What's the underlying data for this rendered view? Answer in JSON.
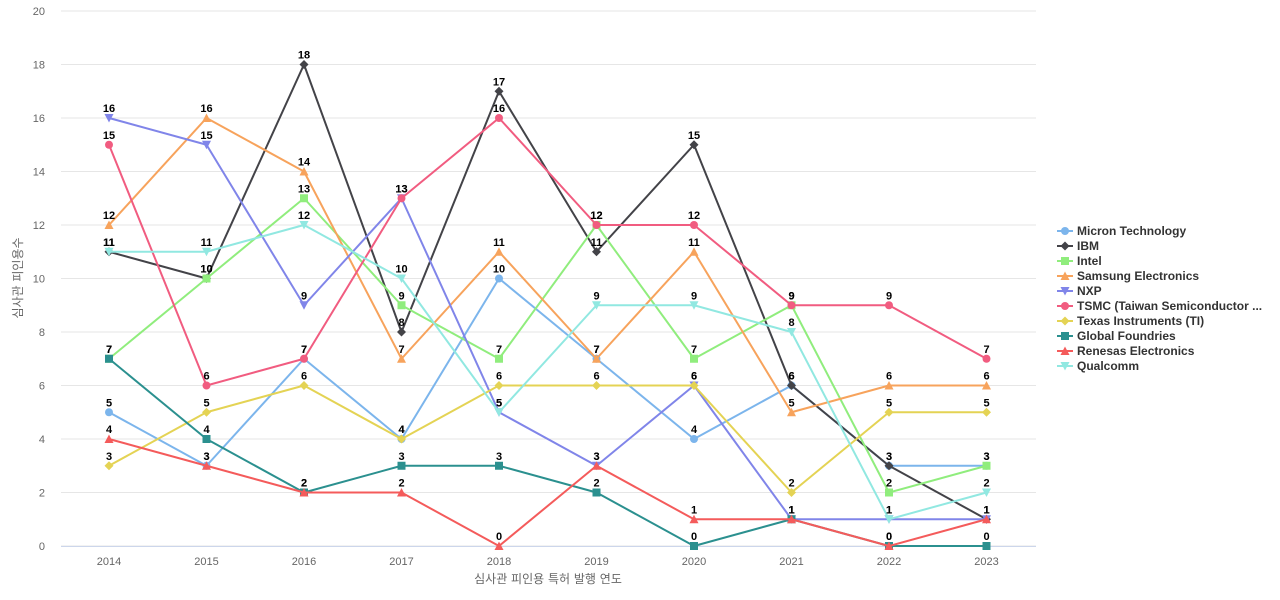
{
  "chart_data": {
    "type": "line",
    "xlabel": "심사관 피인용 특허 발행 연도",
    "ylabel": "심사관 피인용수",
    "ylim": [
      0,
      20
    ],
    "yticks": [
      0,
      2,
      4,
      6,
      8,
      10,
      12,
      14,
      16,
      18,
      20
    ],
    "x": [
      "2014",
      "2015",
      "2016",
      "2017",
      "2018",
      "2019",
      "2020",
      "2021",
      "2022",
      "2023"
    ],
    "grid": true,
    "legend_position": "right",
    "series": [
      {
        "name": "Micron Technology",
        "color": "#7cb5ec",
        "marker": "circle",
        "values": [
          5,
          3,
          7,
          4,
          10,
          7,
          4,
          6,
          3,
          3
        ]
      },
      {
        "name": "IBM",
        "color": "#434348",
        "marker": "diamond",
        "values": [
          11,
          10,
          18,
          8,
          17,
          11,
          15,
          6,
          3,
          1
        ]
      },
      {
        "name": "Intel",
        "color": "#90ed7d",
        "marker": "square",
        "values": [
          7,
          10,
          13,
          9,
          7,
          12,
          7,
          9,
          2,
          3
        ]
      },
      {
        "name": "Samsung Electronics",
        "color": "#f7a35c",
        "marker": "triangle",
        "values": [
          12,
          16,
          14,
          7,
          11,
          7,
          11,
          5,
          6,
          6
        ]
      },
      {
        "name": "NXP",
        "color": "#8085e9",
        "marker": "triangle-down",
        "values": [
          16,
          15,
          9,
          13,
          5,
          3,
          6,
          1,
          1,
          1
        ]
      },
      {
        "name": "TSMC (Taiwan Semiconductor ...",
        "color": "#f15c80",
        "marker": "circle",
        "values": [
          15,
          6,
          7,
          13,
          16,
          12,
          12,
          9,
          9,
          7
        ]
      },
      {
        "name": "Texas Instruments (TI)",
        "color": "#e4d354",
        "marker": "diamond",
        "values": [
          3,
          5,
          6,
          4,
          6,
          6,
          6,
          2,
          5,
          5
        ]
      },
      {
        "name": "Global Foundries",
        "color": "#2b908f",
        "marker": "square",
        "values": [
          7,
          4,
          2,
          3,
          3,
          2,
          0,
          1,
          0,
          0
        ]
      },
      {
        "name": "Renesas Electronics",
        "color": "#f45b5b",
        "marker": "triangle",
        "values": [
          4,
          3,
          2,
          2,
          0,
          3,
          1,
          1,
          0,
          1
        ]
      },
      {
        "name": "Qualcomm",
        "color": "#91e8e1",
        "marker": "triangle-down",
        "values": [
          11,
          11,
          12,
          10,
          5,
          9,
          9,
          8,
          1,
          2
        ]
      }
    ]
  }
}
